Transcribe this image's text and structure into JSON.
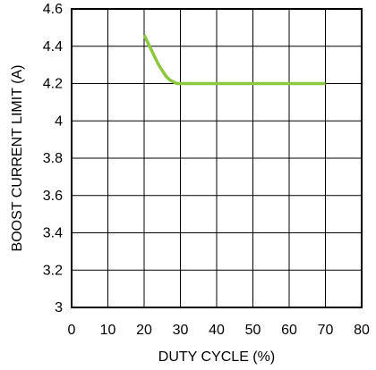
{
  "chart_data": {
    "type": "line",
    "xlabel": "DUTY CYCLE (%)",
    "ylabel": "BOOST CURRENT LIMIT (A)",
    "xlim": [
      0,
      80
    ],
    "ylim": [
      3,
      4.6
    ],
    "x_ticks": [
      0,
      10,
      20,
      30,
      40,
      50,
      60,
      70,
      80
    ],
    "x_tick_labels": [
      "0",
      "10",
      "20",
      "30",
      "40",
      "50",
      "60",
      "70",
      "80"
    ],
    "y_ticks": [
      3,
      3.2,
      3.4,
      3.6,
      3.8,
      4,
      4.2,
      4.4,
      4.6
    ],
    "y_tick_labels": [
      "3",
      "3.2",
      "3.4",
      "3.6",
      "3.8",
      "4",
      "4.2",
      "4.4",
      "4.6"
    ],
    "grid": true,
    "series": [
      {
        "color": "#8dc63f",
        "x": [
          20,
          21,
          22,
          23,
          24,
          25,
          26,
          27,
          28,
          29,
          30,
          40,
          50,
          60,
          70
        ],
        "y": [
          4.46,
          4.42,
          4.38,
          4.34,
          4.3,
          4.27,
          4.24,
          4.22,
          4.21,
          4.2,
          4.2,
          4.2,
          4.2,
          4.2,
          4.2
        ]
      }
    ]
  }
}
